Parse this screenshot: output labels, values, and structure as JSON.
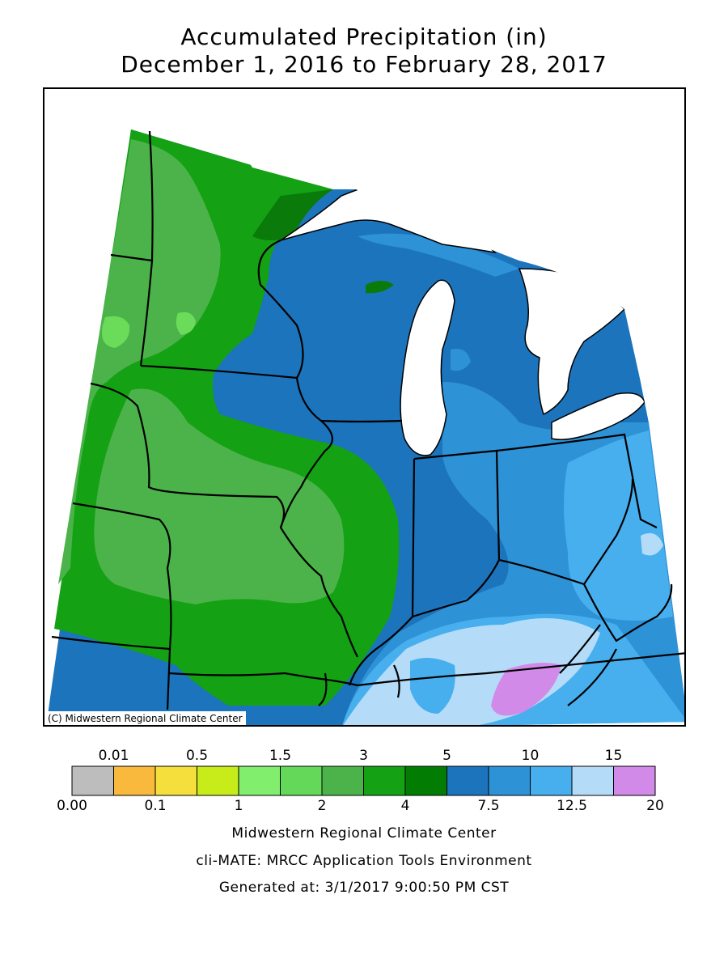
{
  "header": {
    "title_line1": "Accumulated Precipitation (in)",
    "title_line2": "December 1, 2016 to February 28, 2017"
  },
  "map": {
    "copyright": "(C) Midwestern Regional Climate Center",
    "colors": {
      "green_light": "#6adc5a",
      "green_mid": "#4cb34a",
      "green_3_4": "#14a114",
      "green_dark": "#0a7a0a",
      "blue_5_7_5": "#1c74bc",
      "blue_7_5_10": "#2e92d6",
      "blue_10_12_5": "#48afee",
      "blue_pale": "#b4dcf9",
      "violet": "#d28ae8",
      "lakes": "#ffffff",
      "outline": "#000000"
    }
  },
  "legend": {
    "top_labels": [
      "0.01",
      "0.5",
      "1.5",
      "3",
      "5",
      "10",
      "15"
    ],
    "bottom_labels": [
      "0.00",
      "0.1",
      "1",
      "2",
      "4",
      "7.5",
      "12.5",
      "20"
    ],
    "colors": [
      "#bdbdbd",
      "#f9b93c",
      "#f5df3c",
      "#c8ec1a",
      "#82ee6e",
      "#64d858",
      "#4cb34a",
      "#14a114",
      "#037c03",
      "#1c74bc",
      "#2e92d6",
      "#48afee",
      "#b4dcf9",
      "#d28ae8"
    ]
  },
  "footer": {
    "line1": "Midwestern Regional Climate Center",
    "line2": "cli-MATE: MRCC Application Tools Environment",
    "line3": "Generated at: 3/1/2017 9:00:50 PM CST"
  }
}
